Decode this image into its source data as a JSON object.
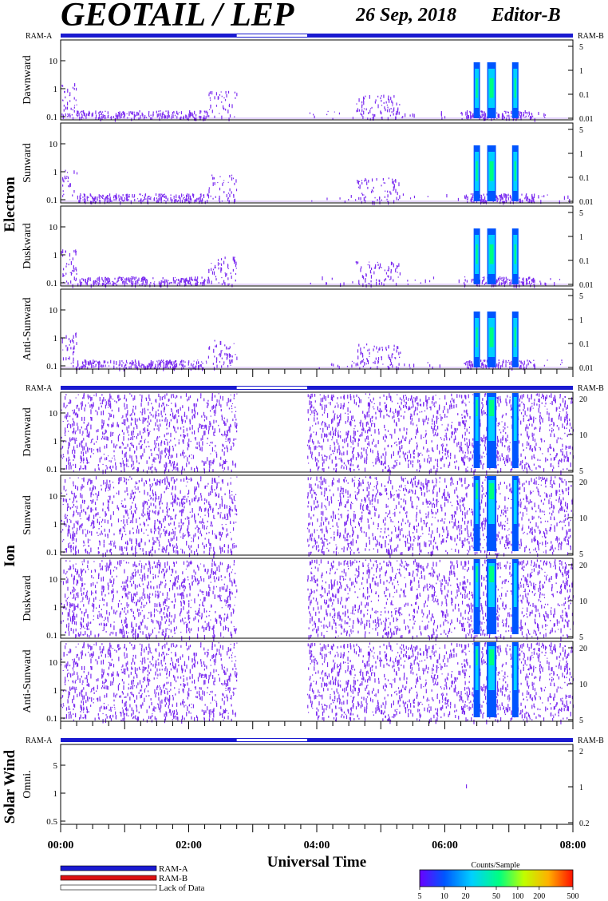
{
  "header": {
    "instrument": "GEOTAIL / LEP",
    "date": "26 Sep, 2018",
    "editor": "Editor-B"
  },
  "colors": {
    "ram_a": "#1a1ad0",
    "ram_b": "#dd1111",
    "lack": "#ffffff",
    "spectrogram_base": "#7c2df0"
  },
  "groups": [
    {
      "label": "Electron"
    },
    {
      "label": "Ion"
    },
    {
      "label": "Solar Wind"
    }
  ],
  "ram_labels": {
    "left": "RAM-A",
    "right": "RAM-B"
  },
  "chart_data": {
    "type": "heatmap",
    "xlabel": "Universal Time",
    "x_ticks": [
      "00:00",
      "02:00",
      "04:00",
      "06:00",
      "08:00"
    ],
    "x_range_hours": [
      0,
      8
    ],
    "data_gap_hours": [
      2.75,
      3.85
    ],
    "panels": [
      {
        "group": "Electron",
        "label": "Dawnward",
        "y_ticks_left": [
          "10",
          "1",
          "0.1"
        ],
        "y_ticks_right": [
          "5",
          "1",
          "0.1",
          "0.01"
        ]
      },
      {
        "group": "Electron",
        "label": "Sunward",
        "y_ticks_left": [
          "10",
          "1",
          "0.1"
        ],
        "y_ticks_right": [
          "5",
          "1",
          "0.1",
          "0.01"
        ]
      },
      {
        "group": "Electron",
        "label": "Duskward",
        "y_ticks_left": [
          "10",
          "1",
          "0.1"
        ],
        "y_ticks_right": [
          "5",
          "1",
          "0.1",
          "0.01"
        ]
      },
      {
        "group": "Electron",
        "label": "Anti-Sunward",
        "y_ticks_left": [
          "10",
          "1",
          "0.1"
        ],
        "y_ticks_right": [
          "5",
          "1",
          "0.1",
          "0.01"
        ]
      },
      {
        "group": "Ion",
        "label": "Dawnward",
        "y_ticks_left": [
          "10",
          "1",
          "0.1"
        ],
        "y_ticks_right": [
          "20",
          "10",
          "5"
        ]
      },
      {
        "group": "Ion",
        "label": "Sunward",
        "y_ticks_left": [
          "10",
          "1",
          "0.1"
        ],
        "y_ticks_right": [
          "20",
          "10",
          "5"
        ]
      },
      {
        "group": "Ion",
        "label": "Duskward",
        "y_ticks_left": [
          "10",
          "1",
          "0.1"
        ],
        "y_ticks_right": [
          "20",
          "10",
          "5"
        ]
      },
      {
        "group": "Ion",
        "label": "Anti-Sunward",
        "y_ticks_left": [
          "10",
          "1",
          "0.1"
        ],
        "y_ticks_right": [
          "20",
          "10",
          "5"
        ]
      },
      {
        "group": "Solar Wind",
        "label": "Omni.",
        "y_ticks_left": [
          "5",
          "1",
          "0.5"
        ],
        "y_ticks_right": [
          "2",
          "1",
          "0.2"
        ]
      }
    ],
    "colorbar": {
      "title": "Counts/Sample",
      "ticks": [
        "5",
        "10",
        "20",
        "50",
        "100",
        "200",
        "500"
      ],
      "colors": [
        "#6a00ff",
        "#0055ff",
        "#00d0ff",
        "#00ff80",
        "#c0ff00",
        "#ffb000",
        "#ff1000"
      ]
    }
  },
  "legend": {
    "items": [
      {
        "label": "RAM-A",
        "color": "#1a1ad0"
      },
      {
        "label": "RAM-B",
        "color": "#dd1111"
      },
      {
        "label": "Lack of Data",
        "color": "#ffffff"
      }
    ]
  }
}
